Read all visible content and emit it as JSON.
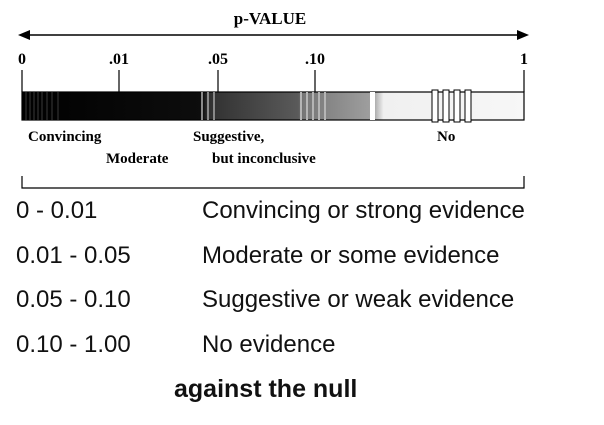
{
  "scale": {
    "title": "p-VALUE",
    "ticks": [
      {
        "label": "0",
        "value": 0
      },
      {
        "label": ".01",
        "value": 0.01
      },
      {
        "label": ".05",
        "value": 0.05
      },
      {
        "label": ".10",
        "value": 0.1
      },
      {
        "label": "1",
        "value": 1
      }
    ],
    "zone_labels": {
      "convincing": "Convincing",
      "moderate": "Moderate",
      "suggestive_line1": "Suggestive,",
      "suggestive_line2": "but inconclusive",
      "no": "No"
    },
    "colors": {
      "strong": "#000000",
      "moderate": "#1a1a1a",
      "suggestive": "#555555",
      "weak": "#999999",
      "none": "#f4f4f4"
    }
  },
  "table": {
    "rows": [
      {
        "range": "0 - 0.01",
        "description": "Convincing or strong evidence"
      },
      {
        "range": "0.01 - 0.05",
        "description": "Moderate or some evidence"
      },
      {
        "range": "0.05 - 0.10",
        "description": "Suggestive or weak evidence"
      },
      {
        "range": "0.10 - 1.00",
        "description": "No evidence"
      }
    ],
    "footer": "against the null"
  }
}
